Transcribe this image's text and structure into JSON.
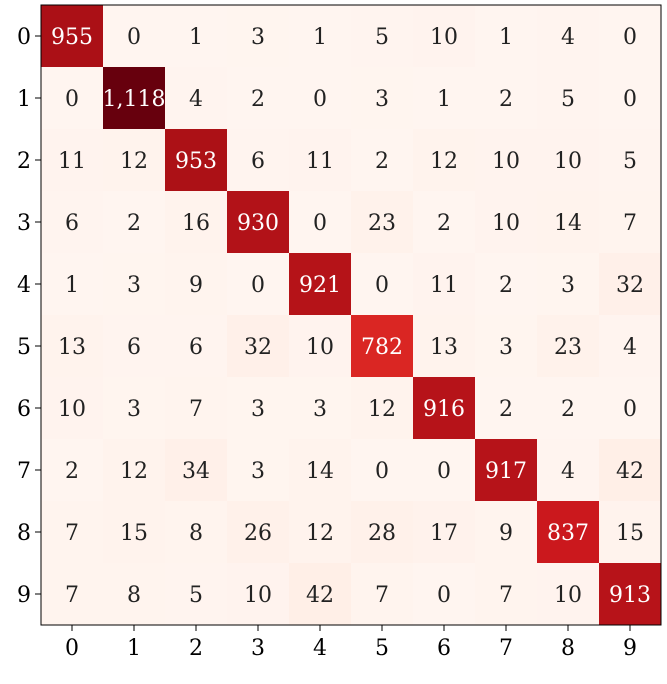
{
  "chart_data": {
    "type": "heatmap",
    "title": "",
    "xlabel": "",
    "ylabel": "",
    "x_categories": [
      "0",
      "1",
      "2",
      "3",
      "4",
      "5",
      "6",
      "7",
      "8",
      "9"
    ],
    "y_categories": [
      "0",
      "1",
      "2",
      "3",
      "4",
      "5",
      "6",
      "7",
      "8",
      "9"
    ],
    "cell_labels": [
      [
        "955",
        "0",
        "1",
        "3",
        "1",
        "5",
        "10",
        "1",
        "4",
        "0"
      ],
      [
        "0",
        "1,118",
        "4",
        "2",
        "0",
        "3",
        "1",
        "2",
        "5",
        "0"
      ],
      [
        "11",
        "12",
        "953",
        "6",
        "11",
        "2",
        "12",
        "10",
        "10",
        "5"
      ],
      [
        "6",
        "2",
        "16",
        "930",
        "0",
        "23",
        "2",
        "10",
        "14",
        "7"
      ],
      [
        "1",
        "3",
        "9",
        "0",
        "921",
        "0",
        "11",
        "2",
        "3",
        "32"
      ],
      [
        "13",
        "6",
        "6",
        "32",
        "10",
        "782",
        "13",
        "3",
        "23",
        "4"
      ],
      [
        "10",
        "3",
        "7",
        "3",
        "3",
        "12",
        "916",
        "2",
        "2",
        "0"
      ],
      [
        "2",
        "12",
        "34",
        "3",
        "14",
        "0",
        "0",
        "917",
        "4",
        "42"
      ],
      [
        "7",
        "15",
        "8",
        "26",
        "12",
        "28",
        "17",
        "9",
        "837",
        "15"
      ],
      [
        "7",
        "8",
        "5",
        "10",
        "42",
        "7",
        "0",
        "7",
        "10",
        "913"
      ]
    ],
    "values": [
      [
        955,
        0,
        1,
        3,
        1,
        5,
        10,
        1,
        4,
        0
      ],
      [
        0,
        1118,
        4,
        2,
        0,
        3,
        1,
        2,
        5,
        0
      ],
      [
        11,
        12,
        953,
        6,
        11,
        2,
        12,
        10,
        10,
        5
      ],
      [
        6,
        2,
        16,
        930,
        0,
        23,
        2,
        10,
        14,
        7
      ],
      [
        1,
        3,
        9,
        0,
        921,
        0,
        11,
        2,
        3,
        32
      ],
      [
        13,
        6,
        6,
        32,
        10,
        782,
        13,
        3,
        23,
        4
      ],
      [
        10,
        3,
        7,
        3,
        3,
        12,
        916,
        2,
        2,
        0
      ],
      [
        2,
        12,
        34,
        3,
        14,
        0,
        0,
        917,
        4,
        42
      ],
      [
        7,
        15,
        8,
        26,
        12,
        28,
        17,
        9,
        837,
        15
      ],
      [
        7,
        8,
        5,
        10,
        42,
        7,
        0,
        7,
        10,
        913
      ]
    ],
    "color_scale": {
      "name": "Reds",
      "low": "#fff5f0",
      "high": "#67000d",
      "text_dark": "#222222",
      "text_light": "#ffffff"
    },
    "grid": false,
    "legend": "none"
  }
}
